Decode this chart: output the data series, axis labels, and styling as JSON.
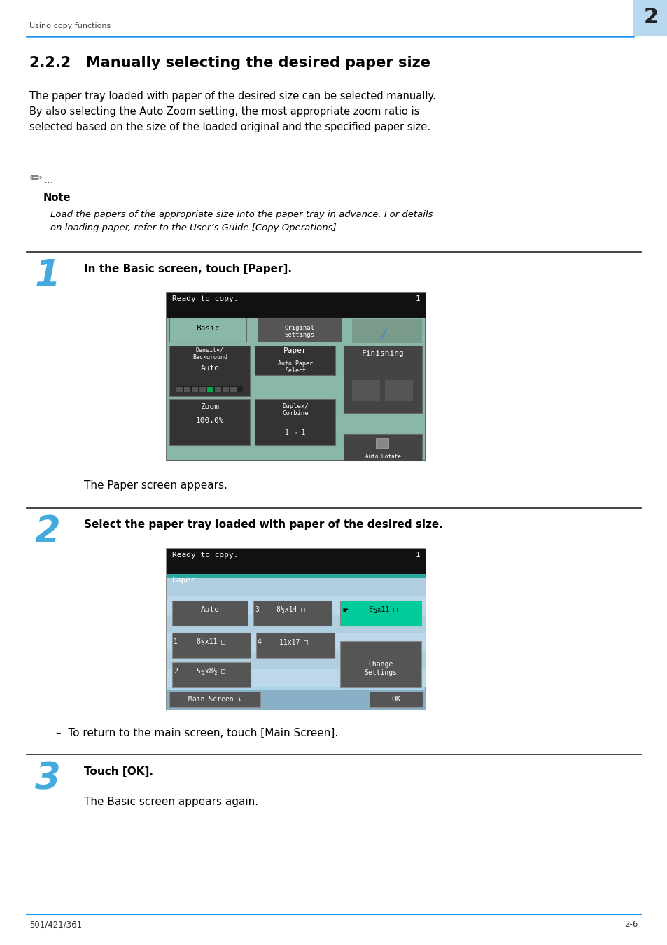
{
  "page_bg": "#ffffff",
  "header_text": "Using copy functions",
  "header_num": "2",
  "header_num_bg": "#b8d8f0",
  "header_line_color": "#2196f3",
  "title": "2.2.2   Manually selecting the desired paper size",
  "body_text1": "The paper tray loaded with paper of the desired size can be selected manually.\nBy also selecting the Auto Zoom setting, the most appropriate zoom ratio is\nselected based on the size of the loaded original and the specified paper size.",
  "note_label": "Note",
  "note_text": "Load the papers of the appropriate size into the paper tray in advance. For details\non loading paper, refer to the User’s Guide [Copy Operations].",
  "step1_num": "1",
  "step1_text": "In the Basic screen, touch [Paper].",
  "step1_sub": "The Paper screen appears.",
  "step2_num": "2",
  "step2_text": "Select the paper tray loaded with paper of the desired size.",
  "step2_sub": "–  To return to the main screen, touch [Main Screen].",
  "step3_num": "3",
  "step3_text": "Touch [OK].",
  "step3_sub": "The Basic screen appears again.",
  "footer_left": "501/421/361",
  "footer_right": "2-6",
  "footer_line_color": "#2196f3",
  "step_num_color": "#44aadd",
  "divider_color": "#222222",
  "screen_bg_teal": "#8ab8a8",
  "screen_bg_dark": "#111111",
  "screen_btn_dark": "#444444",
  "screen_btn_medium": "#666666",
  "screen_paper_bg": "#aad4e8",
  "screen_paper_teal": "#2aa8a0",
  "screen_paper_green": "#00cc99",
  "screen_paper_row": "#c8e4f0",
  "screen_paper_btn": "#555555"
}
